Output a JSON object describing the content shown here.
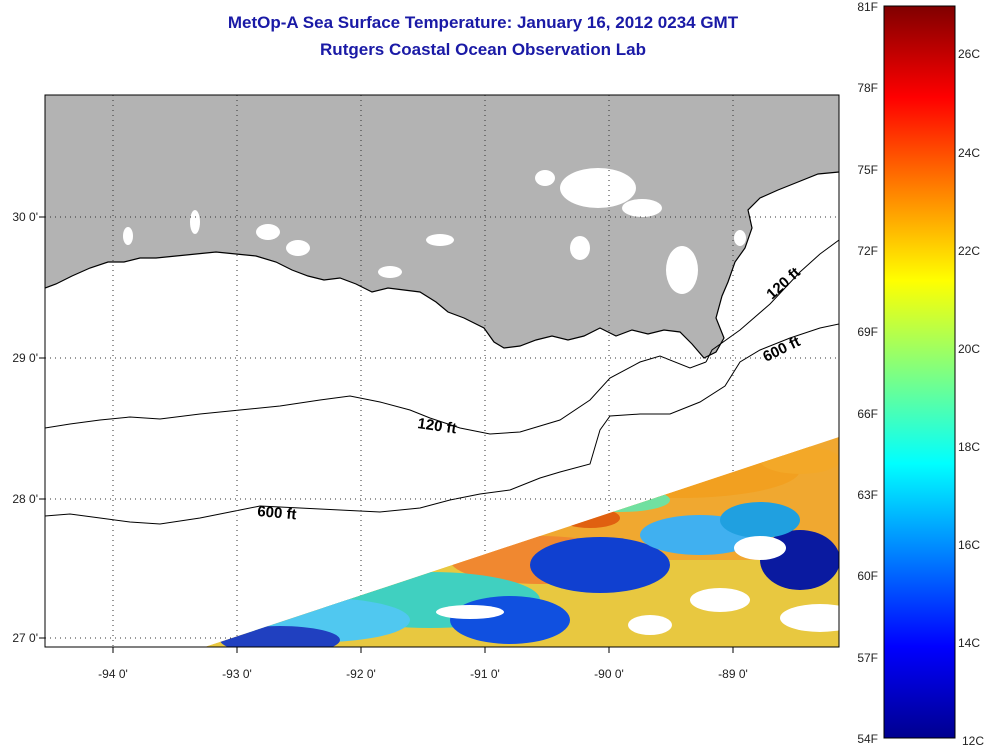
{
  "header": {
    "title": "MetOp-A Sea Surface Temperature:  January 16, 2012 0234 GMT",
    "subtitle": "Rutgers Coastal Ocean Observation Lab"
  },
  "map": {
    "lat_labels": [
      "30 0'",
      "29 0'",
      "28 0'",
      "27 0'"
    ],
    "lon_labels": [
      "-94 0'",
      "-93 0'",
      "-92 0'",
      "-91 0'",
      "-90 0'",
      "-89 0'"
    ],
    "contour_labels": [
      "120 ft",
      "600 ft",
      "120 ft",
      "600 ft"
    ],
    "land_color": "#b3b3b3",
    "lat_range": [
      26.95,
      30.85
    ],
    "lon_range": [
      -94.45,
      -88.0
    ]
  },
  "colorbar": {
    "fahrenheit_labels": [
      "81F",
      "78F",
      "75F",
      "72F",
      "69F",
      "66F",
      "63F",
      "60F",
      "57F",
      "54F"
    ],
    "celsius_labels": [
      "26C",
      "24C",
      "22C",
      "20C",
      "18C",
      "16C",
      "14C",
      "12C"
    ],
    "range_f": [
      54,
      81
    ],
    "colors": [
      "#00008f",
      "#0000ff",
      "#0080ff",
      "#00ffff",
      "#80ff80",
      "#ffff00",
      "#ff8000",
      "#ff0000",
      "#800000"
    ]
  }
}
